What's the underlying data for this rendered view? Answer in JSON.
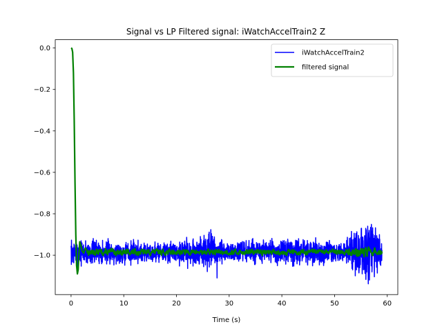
{
  "chart_data": {
    "type": "line",
    "title": "Signal vs LP Filtered signal: iWatchAccelTrain2 Z",
    "xlabel": "Time (s)",
    "ylabel": "",
    "xlim": [
      -3,
      62
    ],
    "ylim": [
      -1.19,
      0.04
    ],
    "xticks": [
      0,
      10,
      20,
      30,
      40,
      50,
      60
    ],
    "xtick_labels": [
      "0",
      "10",
      "20",
      "30",
      "40",
      "50",
      "60"
    ],
    "yticks": [
      0.0,
      -0.2,
      -0.4,
      -0.6,
      -0.8,
      -1.0
    ],
    "ytick_labels": [
      "0.0",
      "−0.2",
      "−0.4",
      "−0.6",
      "−0.8",
      "−1.0"
    ],
    "grid": false,
    "legend_position": "top-right",
    "series": [
      {
        "name": "iWatchAccelTrain2",
        "color": "#0000ff",
        "generated": true,
        "x_start": 0,
        "x_end": 59,
        "mean": -0.985,
        "noise": [
          [
            0,
            0.045
          ],
          [
            20,
            0.035
          ],
          [
            27,
            0.07
          ],
          [
            28,
            0.04
          ],
          [
            35,
            0.04
          ],
          [
            45,
            0.045
          ],
          [
            52,
            0.03
          ],
          [
            54,
            0.09
          ],
          [
            57,
            0.1
          ],
          [
            59,
            0.05
          ]
        ],
        "anchors": [
          [
            0,
            -0.955
          ],
          [
            0.4,
            -1.0
          ],
          [
            1.1,
            -0.96
          ],
          [
            2,
            -0.98
          ],
          [
            27.7,
            -1.11
          ],
          [
            54.8,
            -1.06
          ],
          [
            55.1,
            -0.87
          ],
          [
            55.5,
            -1.07
          ],
          [
            56.3,
            -0.86
          ],
          [
            56.6,
            -1.12
          ],
          [
            57.4,
            -0.93
          ],
          [
            58.9,
            -1.02
          ],
          [
            59,
            -0.975
          ]
        ]
      },
      {
        "name": "filtered signal",
        "color": "#008000",
        "generated": true,
        "x_start": 0,
        "x_end": 59,
        "points": [
          [
            0,
            0.0
          ],
          [
            0.15,
            -0.002
          ],
          [
            0.3,
            -0.02
          ],
          [
            0.45,
            -0.12
          ],
          [
            0.6,
            -0.35
          ],
          [
            0.75,
            -0.65
          ],
          [
            0.9,
            -0.9
          ],
          [
            1.05,
            -1.05
          ],
          [
            1.2,
            -1.09
          ],
          [
            1.35,
            -1.07
          ],
          [
            1.5,
            -0.99
          ],
          [
            1.65,
            -0.935
          ],
          [
            1.85,
            -0.95
          ],
          [
            2.1,
            -0.98
          ],
          [
            2.4,
            -0.99
          ],
          [
            2.7,
            -0.965
          ],
          [
            3.0,
            -0.975
          ]
        ],
        "mean": -0.985,
        "noise": [
          [
            3,
            0.015
          ],
          [
            20,
            0.012
          ],
          [
            35,
            0.012
          ],
          [
            52,
            0.012
          ],
          [
            55,
            0.025
          ],
          [
            59,
            0.012
          ]
        ]
      }
    ]
  }
}
